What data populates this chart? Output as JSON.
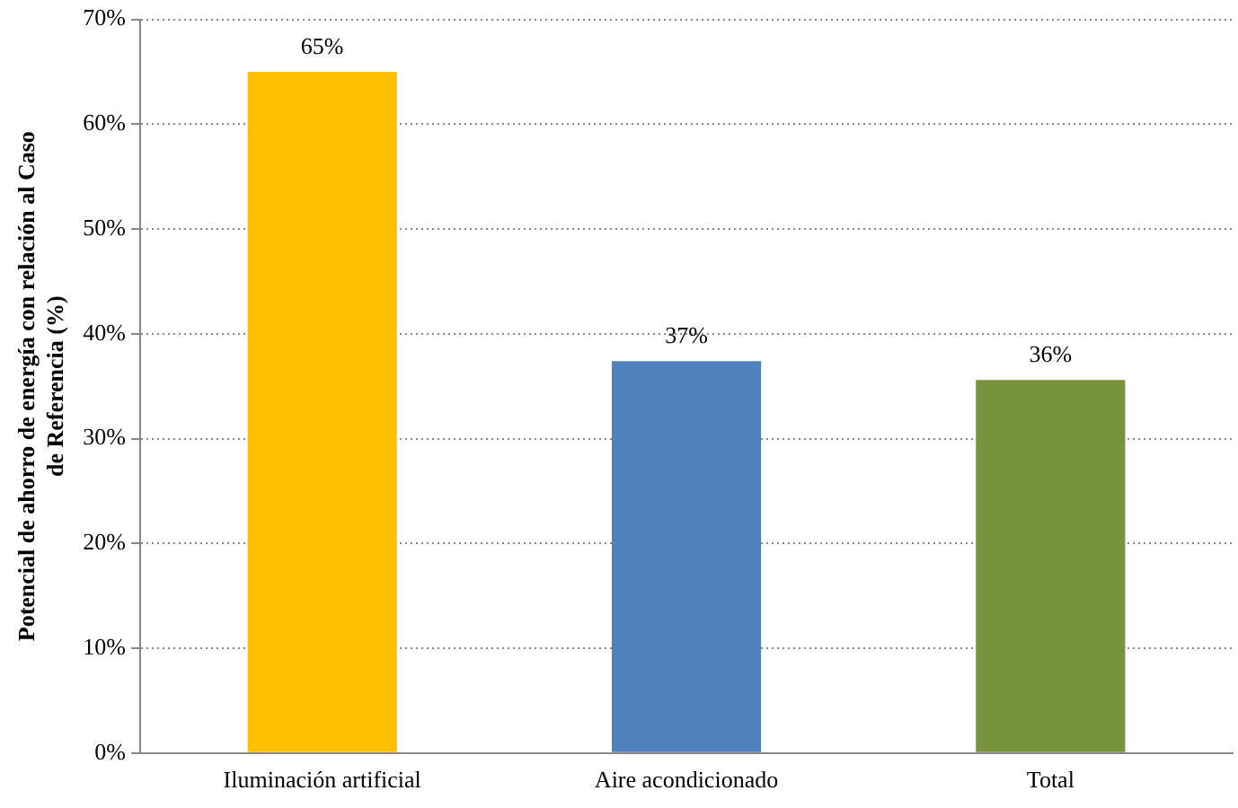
{
  "chart_data": {
    "type": "bar",
    "ylabel": "Potencial de ahorro de energía con relación al Caso de Referencia (%)",
    "categories": [
      "Iluminación artificial",
      "Aire acondicionado",
      "Total"
    ],
    "values": [
      65,
      37.4,
      35.6
    ],
    "value_labels": [
      "65%",
      "37%",
      "36%"
    ],
    "colors": [
      "#ffc000",
      "#4f81bd",
      "#77933c"
    ],
    "ylim": [
      0,
      70
    ],
    "yticks": [
      {
        "value": 0,
        "label": "0%"
      },
      {
        "value": 10,
        "label": "10%"
      },
      {
        "value": 20,
        "label": "20%"
      },
      {
        "value": 30,
        "label": "30%"
      },
      {
        "value": 40,
        "label": "40%"
      },
      {
        "value": 50,
        "label": "50%"
      },
      {
        "value": 60,
        "label": "60%"
      },
      {
        "value": 70,
        "label": "70%"
      }
    ],
    "grid": "y",
    "legend": false
  }
}
